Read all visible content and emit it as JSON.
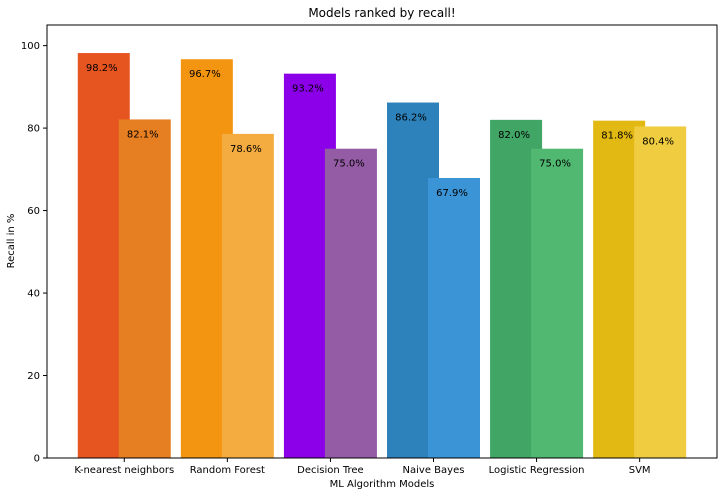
{
  "chart_data": {
    "type": "bar",
    "title": "Models ranked by recall!",
    "xlabel": "ML Algorithm Models",
    "ylabel": "Recall in %",
    "ylim": [
      0,
      105
    ],
    "yticks": [
      0,
      20,
      40,
      60,
      80,
      100
    ],
    "grid": false,
    "categories": [
      "K-nearest neighbors",
      "Random Forest",
      "Decision Tree",
      "Naive Bayes",
      "Logistic Regression",
      "SVM"
    ],
    "series": [
      {
        "values": [
          98.2,
          96.7,
          93.2,
          86.2,
          82.0,
          81.8
        ],
        "labels": [
          "98.2%",
          "96.7%",
          "93.2%",
          "86.2%",
          "82.0%",
          "81.8%"
        ]
      },
      {
        "values": [
          82.1,
          78.6,
          75.0,
          67.9,
          75.0,
          80.4
        ],
        "labels": [
          "82.1%",
          "78.6%",
          "75.0%",
          "67.9%",
          "75.0%",
          "80.4%"
        ]
      }
    ],
    "colors": [
      [
        "#e65520",
        "#e67e22"
      ],
      [
        "#f39510",
        "#f4ab40"
      ],
      [
        "#8b00e8",
        "#955ca6"
      ],
      [
        "#2d82bb",
        "#3a94d5"
      ],
      [
        "#40a565",
        "#50b870"
      ],
      [
        "#e2b812",
        "#f0cc40"
      ]
    ]
  }
}
